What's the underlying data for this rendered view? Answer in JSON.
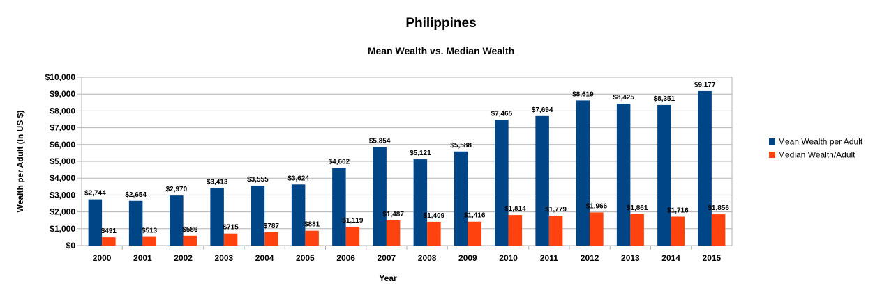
{
  "chart_data": {
    "type": "bar",
    "title": "Philippines",
    "subtitle": "Mean Wealth vs. Median Wealth",
    "xlabel": "Year",
    "ylabel": "Wealth per Adult (In US $)",
    "categories": [
      "2000",
      "2001",
      "2002",
      "2003",
      "2004",
      "2005",
      "2006",
      "2007",
      "2008",
      "2009",
      "2010",
      "2011",
      "2012",
      "2013",
      "2014",
      "2015"
    ],
    "series": [
      {
        "name": "Mean Wealth per Adult",
        "color": "#004586",
        "values": [
          2744,
          2654,
          2970,
          3413,
          3555,
          3624,
          4602,
          5854,
          5121,
          5588,
          7465,
          7694,
          8619,
          8425,
          8351,
          9177
        ],
        "labels": [
          "$2,744",
          "$2,654",
          "$2,970",
          "$3,413",
          "$3,555",
          "$3,624",
          "$4,602",
          "$5,854",
          "$5,121",
          "$5,588",
          "$7,465",
          "$7,694",
          "$8,619",
          "$8,425",
          "$8,351",
          "$9,177"
        ]
      },
      {
        "name": "Median Wealth/Adult",
        "color": "#ff420e",
        "values": [
          491,
          513,
          586,
          715,
          787,
          881,
          1119,
          1487,
          1409,
          1416,
          1814,
          1779,
          1966,
          1861,
          1716,
          1856
        ],
        "labels": [
          "$491",
          "$513",
          "$586",
          "$715",
          "$787",
          "$881",
          "$1,119",
          "$1,487",
          "$1,409",
          "$1,416",
          "$1,814",
          "$1,779",
          "$1,966",
          "$1,861",
          "$1,716",
          "$1,856"
        ]
      }
    ],
    "ylim": [
      0,
      10000
    ],
    "yticks": [
      0,
      1000,
      2000,
      3000,
      4000,
      5000,
      6000,
      7000,
      8000,
      9000,
      10000
    ],
    "ytick_labels": [
      "$0",
      "$1,000",
      "$2,000",
      "$3,000",
      "$4,000",
      "$5,000",
      "$6,000",
      "$7,000",
      "$8,000",
      "$9,000",
      "$10,000"
    ],
    "grid": true,
    "legend_position": "right"
  }
}
